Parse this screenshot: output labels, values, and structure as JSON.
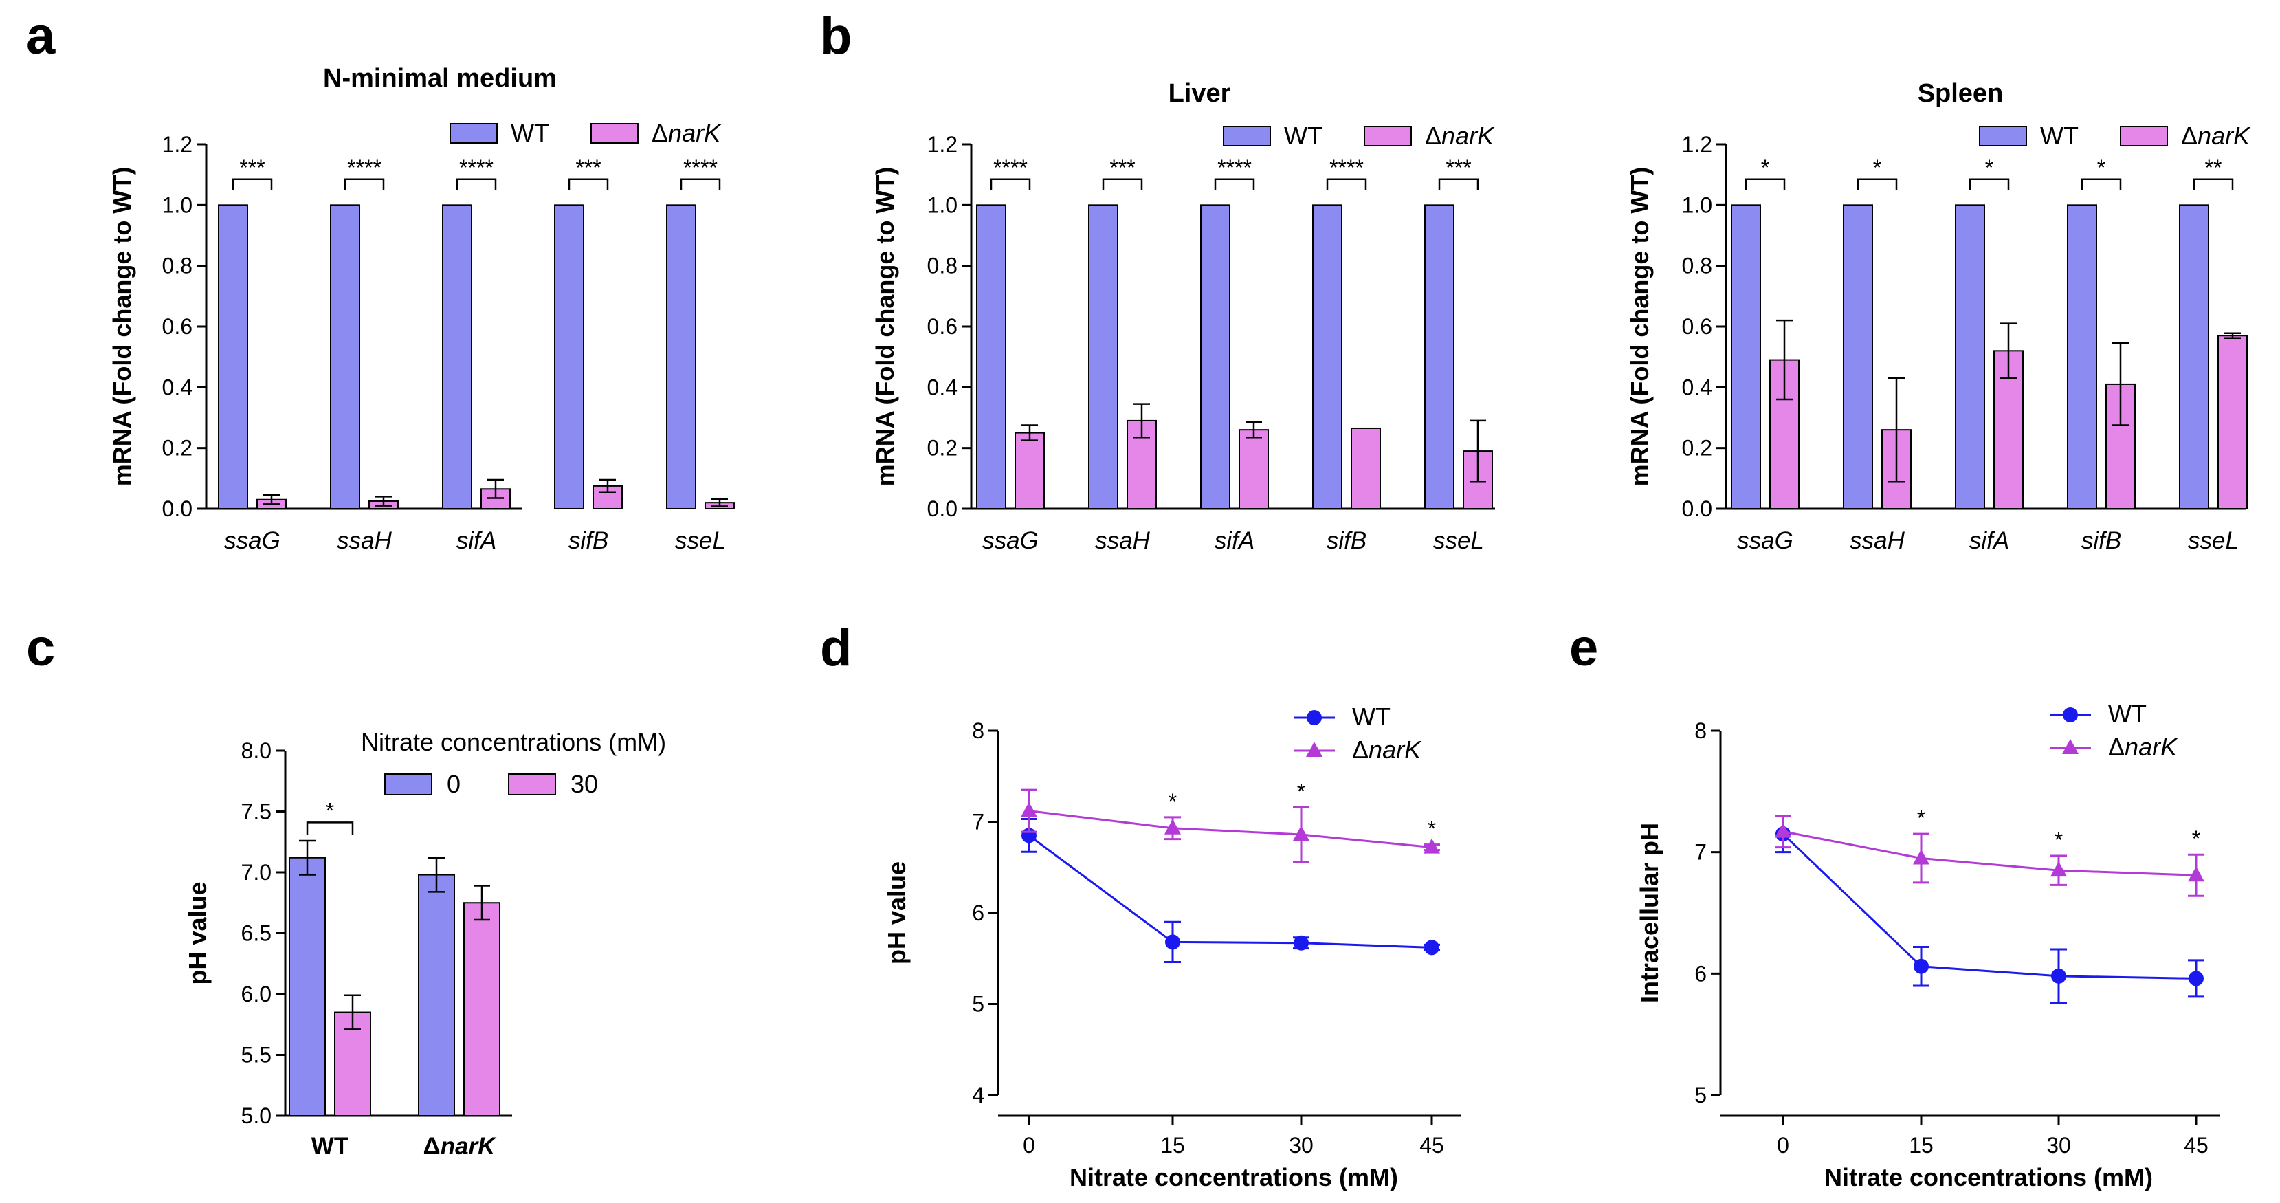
{
  "colors": {
    "wt_bar": "#8b8bf2",
    "mut_bar": "#e487e8",
    "wt_line": "#1a1aee",
    "mut_line": "#b33ad6"
  },
  "chart_data": [
    {
      "id": "a",
      "panel_label": "a",
      "type": "bar",
      "title": "N-minimal medium",
      "ylabel": "mRNA (Fold change to WT)",
      "ylim": [
        0,
        1.2
      ],
      "yticks": [
        "0.0",
        "0.2",
        "0.4",
        "0.6",
        "0.8",
        "1.0",
        "1.2"
      ],
      "categories": [
        "ssaG",
        "ssaH",
        "sifA",
        "sifB",
        "sseL"
      ],
      "series": [
        {
          "name": "WT",
          "values": [
            1.0,
            1.0,
            1.0,
            1.0,
            1.0
          ],
          "errors": [
            0,
            0,
            0,
            0,
            0
          ]
        },
        {
          "name": "ΔnarK",
          "values": [
            0.03,
            0.025,
            0.065,
            0.075,
            0.02
          ],
          "errors": [
            0.015,
            0.015,
            0.03,
            0.02,
            0.012
          ]
        }
      ],
      "significance": [
        "***",
        "****",
        "****",
        "***",
        "****"
      ]
    },
    {
      "id": "b1",
      "panel_label": "b",
      "type": "bar",
      "title": "Liver",
      "ylabel": "mRNA (Fold change to WT)",
      "ylim": [
        0,
        1.2
      ],
      "yticks": [
        "0.0",
        "0.2",
        "0.4",
        "0.6",
        "0.8",
        "1.0",
        "1.2"
      ],
      "categories": [
        "ssaG",
        "ssaH",
        "sifA",
        "sifB",
        "sseL"
      ],
      "series": [
        {
          "name": "WT",
          "values": [
            1.0,
            1.0,
            1.0,
            1.0,
            1.0
          ],
          "errors": [
            0,
            0,
            0,
            0,
            0
          ]
        },
        {
          "name": "ΔnarK",
          "values": [
            0.25,
            0.29,
            0.26,
            0.265,
            0.19
          ],
          "errors": [
            0.025,
            0.055,
            0.025,
            0.003,
            0.1
          ]
        }
      ],
      "significance": [
        "****",
        "***",
        "****",
        "****",
        "***"
      ]
    },
    {
      "id": "b2",
      "panel_label": "",
      "type": "bar",
      "title": "Spleen",
      "ylabel": "mRNA (Fold change to WT)",
      "ylim": [
        0,
        1.2
      ],
      "yticks": [
        "0.0",
        "0.2",
        "0.4",
        "0.6",
        "0.8",
        "1.0",
        "1.2"
      ],
      "categories": [
        "ssaG",
        "ssaH",
        "sifA",
        "sifB",
        "sseL"
      ],
      "series": [
        {
          "name": "WT",
          "values": [
            1.0,
            1.0,
            1.0,
            1.0,
            1.0
          ],
          "errors": [
            0,
            0,
            0,
            0,
            0
          ]
        },
        {
          "name": "ΔnarK",
          "values": [
            0.49,
            0.26,
            0.52,
            0.41,
            0.57
          ],
          "errors": [
            0.13,
            0.17,
            0.09,
            0.135,
            0.008
          ]
        }
      ],
      "significance": [
        "*",
        "*",
        "*",
        "*",
        "**"
      ]
    },
    {
      "id": "c",
      "panel_label": "c",
      "type": "bar",
      "title": "",
      "ylabel": "pH value",
      "ylim": [
        5.0,
        8.0
      ],
      "yticks": [
        "5.0",
        "5.5",
        "6.0",
        "6.5",
        "7.0",
        "7.5",
        "8.0"
      ],
      "legend_title": "Nitrate concentrations (mM)",
      "categories": [
        "WT",
        "ΔnarK"
      ],
      "series": [
        {
          "name": "0",
          "values": [
            7.12,
            6.98
          ],
          "errors": [
            0.14,
            0.14
          ]
        },
        {
          "name": "30",
          "values": [
            5.85,
            6.75
          ],
          "errors": [
            0.14,
            0.14
          ]
        }
      ],
      "significance": [
        "*",
        ""
      ]
    },
    {
      "id": "d",
      "panel_label": "d",
      "type": "line",
      "ylabel": "pH value",
      "xlabel": "Nitrate concentrations (mM)",
      "x": [
        0,
        15,
        30,
        45
      ],
      "xticks": [
        "0",
        "15",
        "30",
        "45"
      ],
      "xlim": [
        -5,
        50
      ],
      "ylim": [
        4,
        8
      ],
      "yticks": [
        "4",
        "5",
        "6",
        "7",
        "8"
      ],
      "series": [
        {
          "name": "WT",
          "marker": "circle",
          "values": [
            6.85,
            5.68,
            5.67,
            5.62
          ],
          "errors": [
            0.18,
            0.22,
            0.06,
            0.03
          ]
        },
        {
          "name": "ΔnarK",
          "marker": "triangle",
          "values": [
            7.12,
            6.93,
            6.86,
            6.72
          ],
          "errors": [
            0.23,
            0.12,
            0.3,
            0.03
          ]
        }
      ],
      "significance": [
        "",
        "*",
        "*",
        "*"
      ]
    },
    {
      "id": "e",
      "panel_label": "e",
      "type": "line",
      "ylabel": "Intracellular pH",
      "xlabel": "Nitrate concentrations (mM)",
      "x": [
        0,
        15,
        30,
        45
      ],
      "xticks": [
        "0",
        "15",
        "30",
        "45"
      ],
      "xlim": [
        -5,
        50
      ],
      "ylim": [
        5,
        8
      ],
      "yticks": [
        "5",
        "6",
        "7",
        "8"
      ],
      "series": [
        {
          "name": "WT",
          "marker": "circle",
          "values": [
            7.15,
            6.06,
            5.98,
            5.96
          ],
          "errors": [
            0.15,
            0.16,
            0.22,
            0.15
          ]
        },
        {
          "name": "ΔnarK",
          "marker": "triangle",
          "values": [
            7.17,
            6.95,
            6.85,
            6.81
          ],
          "errors": [
            0.13,
            0.2,
            0.12,
            0.17
          ]
        }
      ],
      "significance": [
        "",
        "*",
        "*",
        "*"
      ]
    }
  ]
}
